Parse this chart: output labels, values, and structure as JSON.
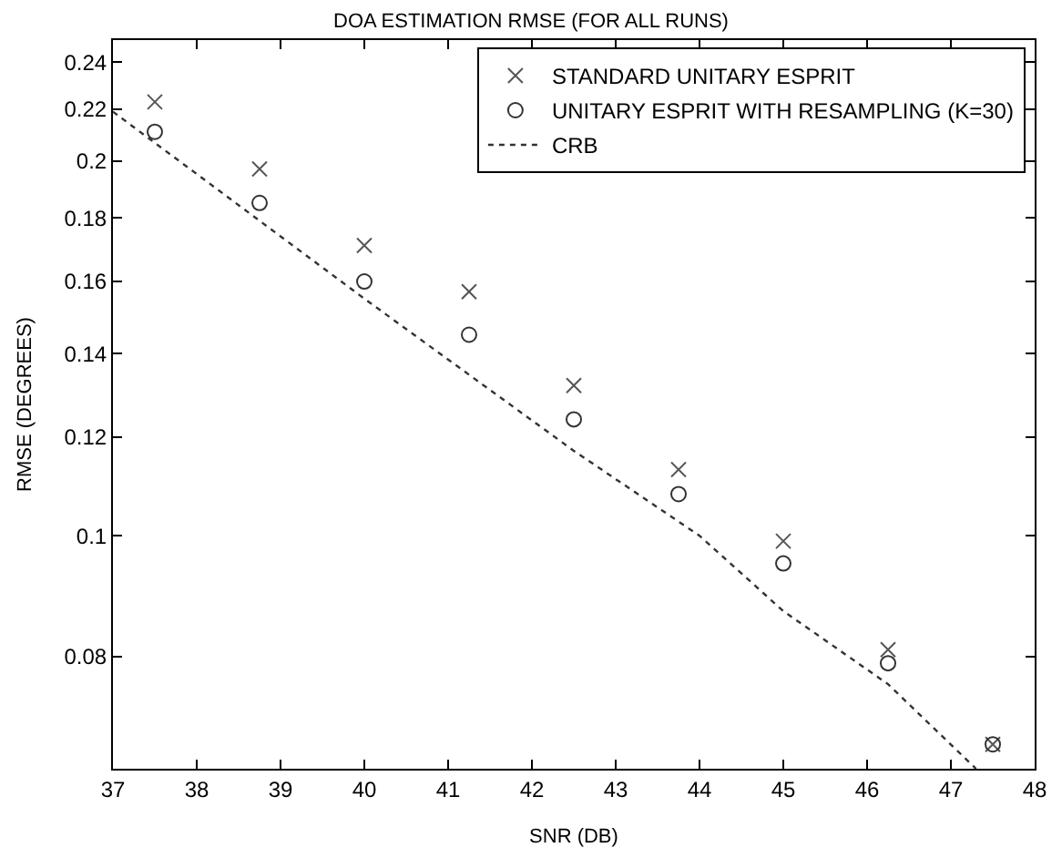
{
  "chart_data": {
    "type": "scatter",
    "title": "DOA ESTIMATION RMSE (FOR ALL RUNS)",
    "xlabel": "SNR (DB)",
    "ylabel": "RMSE (DEGREES)",
    "x": [
      37.5,
      38.75,
      40,
      41.25,
      42.5,
      43.75,
      45,
      46.25,
      47.5
    ],
    "series": [
      {
        "name": "STANDARD UNITARY ESPRIT",
        "color": "#555555",
        "marker": "cross",
        "values": [
          0.223,
          0.197,
          0.171,
          0.157,
          0.132,
          0.113,
          0.099,
          0.081,
          0.068
        ]
      },
      {
        "name": "UNITARY ESPRIT WITH RESAMPLING (K=30)",
        "color": "#333333",
        "marker": "circle",
        "values": [
          0.211,
          0.185,
          0.16,
          0.145,
          0.124,
          0.108,
          0.095,
          0.079,
          0.068
        ]
      },
      {
        "name": "CRB",
        "type": "line",
        "color": "#333333",
        "marker": "none",
        "line_style": "dotted",
        "x": [
          37,
          40,
          42.5,
          44,
          45,
          46.25,
          47.3
        ],
        "values": [
          0.219,
          0.155,
          0.117,
          0.1,
          0.087,
          0.076,
          0.065
        ]
      }
    ],
    "log": "y",
    "xlim": [
      37,
      48
    ],
    "ylim": [
      0.065,
      0.25
    ],
    "xticks": [
      37,
      38,
      39,
      40,
      41,
      42,
      43,
      44,
      45,
      46,
      47,
      48
    ],
    "yticks": [
      0.08,
      0.1,
      0.12,
      0.14,
      0.16,
      0.18,
      0.2,
      0.22,
      0.24
    ],
    "legend": "top right"
  }
}
